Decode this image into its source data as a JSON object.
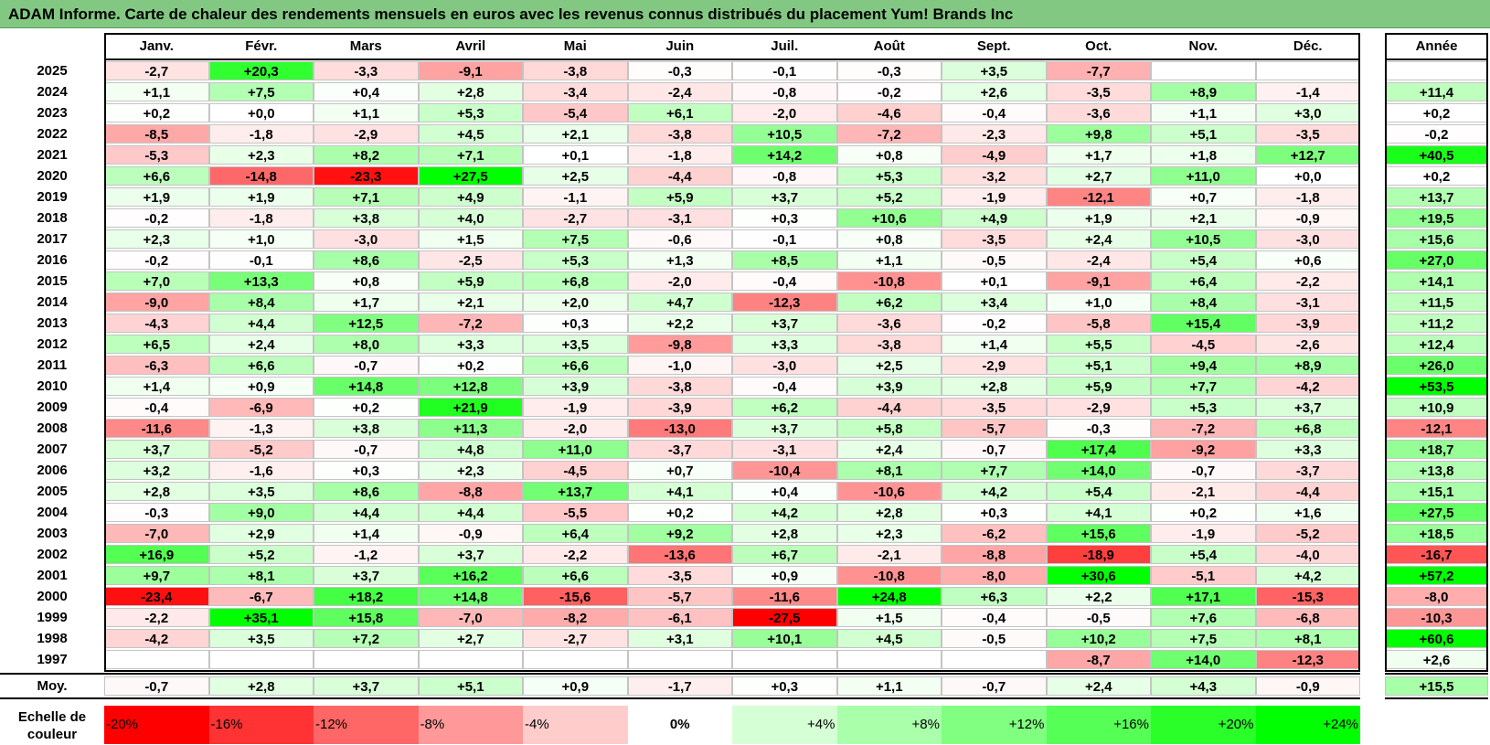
{
  "title": "ADAM Informe. Carte de chaleur des rendements mensuels en euros avec les revenus connus distribués du placement Yum! Brands Inc",
  "chart_data": {
    "type": "heatmap",
    "months": [
      "Janv.",
      "Févr.",
      "Mars",
      "Avril",
      "Mai",
      "Juin",
      "Juil.",
      "Août",
      "Sept.",
      "Oct.",
      "Nov.",
      "Déc."
    ],
    "year_header": "Année",
    "rows": [
      {
        "year": "2025",
        "m": [
          "-2,7",
          "+20,3",
          "-3,3",
          "-9,1",
          "-3,8",
          "-0,3",
          "-0,1",
          "-0,3",
          "+3,5",
          "-7,7",
          "",
          ""
        ],
        "y": ""
      },
      {
        "year": "2024",
        "m": [
          "+1,1",
          "+7,5",
          "+0,4",
          "+2,8",
          "-3,4",
          "-2,4",
          "-0,8",
          "-0,2",
          "+2,6",
          "-3,5",
          "+8,9",
          "-1,4"
        ],
        "y": "+11,4"
      },
      {
        "year": "2023",
        "m": [
          "+0,2",
          "+0,0",
          "+1,1",
          "+5,3",
          "-5,4",
          "+6,1",
          "-2,0",
          "-4,6",
          "-0,4",
          "-3,6",
          "+1,1",
          "+3,0"
        ],
        "y": "+0,2"
      },
      {
        "year": "2022",
        "m": [
          "-8,5",
          "-1,8",
          "-2,9",
          "+4,5",
          "+2,1",
          "-3,8",
          "+10,5",
          "-7,2",
          "-2,3",
          "+9,8",
          "+5,1",
          "-3,5"
        ],
        "y": "-0,2"
      },
      {
        "year": "2021",
        "m": [
          "-5,3",
          "+2,3",
          "+8,2",
          "+7,1",
          "+0,1",
          "-1,8",
          "+14,2",
          "+0,8",
          "-4,9",
          "+1,7",
          "+1,8",
          "+12,7"
        ],
        "y": "+40,5"
      },
      {
        "year": "2020",
        "m": [
          "+6,6",
          "-14,8",
          "-23,3",
          "+27,5",
          "+2,5",
          "-4,4",
          "-0,8",
          "+5,3",
          "-3,2",
          "+2,7",
          "+11,0",
          "+0,0"
        ],
        "y": "+0,2"
      },
      {
        "year": "2019",
        "m": [
          "+1,9",
          "+1,9",
          "+7,1",
          "+4,9",
          "-1,1",
          "+5,9",
          "+3,7",
          "+5,2",
          "-1,9",
          "-12,1",
          "+0,7",
          "-1,8"
        ],
        "y": "+13,7"
      },
      {
        "year": "2018",
        "m": [
          "-0,2",
          "-1,8",
          "+3,8",
          "+4,0",
          "-2,7",
          "-3,1",
          "+0,3",
          "+10,6",
          "+4,9",
          "+1,9",
          "+2,1",
          "-0,9"
        ],
        "y": "+19,5"
      },
      {
        "year": "2017",
        "m": [
          "+2,3",
          "+1,0",
          "-3,0",
          "+1,5",
          "+7,5",
          "-0,6",
          "-0,1",
          "+0,8",
          "-3,5",
          "+2,4",
          "+10,5",
          "-3,0"
        ],
        "y": "+15,6"
      },
      {
        "year": "2016",
        "m": [
          "-0,2",
          "-0,1",
          "+8,6",
          "-2,5",
          "+5,3",
          "+1,3",
          "+8,5",
          "+1,1",
          "-0,5",
          "-2,4",
          "+5,4",
          "+0,6"
        ],
        "y": "+27,0"
      },
      {
        "year": "2015",
        "m": [
          "+7,0",
          "+13,3",
          "+0,8",
          "+5,9",
          "+6,8",
          "-2,0",
          "-0,4",
          "-10,8",
          "+0,1",
          "-9,1",
          "+6,4",
          "-2,2"
        ],
        "y": "+14,1"
      },
      {
        "year": "2014",
        "m": [
          "-9,0",
          "+8,4",
          "+1,7",
          "+2,1",
          "+2,0",
          "+4,7",
          "-12,3",
          "+6,2",
          "+3,4",
          "+1,0",
          "+8,4",
          "-3,1"
        ],
        "y": "+11,5"
      },
      {
        "year": "2013",
        "m": [
          "-4,3",
          "+4,4",
          "+12,5",
          "-7,2",
          "+0,3",
          "+2,2",
          "+3,7",
          "-3,6",
          "-0,2",
          "-5,8",
          "+15,4",
          "-3,9"
        ],
        "y": "+11,2"
      },
      {
        "year": "2012",
        "m": [
          "+6,5",
          "+2,4",
          "+8,0",
          "+3,3",
          "+3,5",
          "-9,8",
          "+3,3",
          "-3,8",
          "+1,4",
          "+5,5",
          "-4,5",
          "-2,6"
        ],
        "y": "+12,4"
      },
      {
        "year": "2011",
        "m": [
          "-6,3",
          "+6,6",
          "-0,7",
          "+0,2",
          "+6,6",
          "-1,0",
          "-3,0",
          "+2,5",
          "-2,9",
          "+5,1",
          "+9,4",
          "+8,9"
        ],
        "y": "+26,0"
      },
      {
        "year": "2010",
        "m": [
          "+1,4",
          "+0,9",
          "+14,8",
          "+12,8",
          "+3,9",
          "-3,8",
          "-0,4",
          "+3,9",
          "+2,8",
          "+5,9",
          "+7,7",
          "-4,2"
        ],
        "y": "+53,5"
      },
      {
        "year": "2009",
        "m": [
          "-0,4",
          "-6,9",
          "+0,2",
          "+21,9",
          "-1,9",
          "-3,9",
          "+6,2",
          "-4,4",
          "-3,5",
          "-2,9",
          "+5,3",
          "+3,7"
        ],
        "y": "+10,9"
      },
      {
        "year": "2008",
        "m": [
          "-11,6",
          "-1,3",
          "+3,8",
          "+11,3",
          "-2,0",
          "-13,0",
          "+3,7",
          "+5,8",
          "-5,7",
          "-0,3",
          "-7,2",
          "+6,8"
        ],
        "y": "-12,1"
      },
      {
        "year": "2007",
        "m": [
          "+3,7",
          "-5,2",
          "-0,7",
          "+4,8",
          "+11,0",
          "-3,7",
          "-3,1",
          "+2,4",
          "-0,7",
          "+17,4",
          "-9,2",
          "+3,3"
        ],
        "y": "+18,7"
      },
      {
        "year": "2006",
        "m": [
          "+3,2",
          "-1,6",
          "+0,3",
          "+2,3",
          "-4,5",
          "+0,7",
          "-10,4",
          "+8,1",
          "+7,7",
          "+14,0",
          "-0,7",
          "-3,7"
        ],
        "y": "+13,8"
      },
      {
        "year": "2005",
        "m": [
          "+2,8",
          "+3,5",
          "+8,6",
          "-8,8",
          "+13,7",
          "+4,1",
          "+0,4",
          "-10,6",
          "+4,2",
          "+5,4",
          "-2,1",
          "-4,4"
        ],
        "y": "+15,1"
      },
      {
        "year": "2004",
        "m": [
          "-0,3",
          "+9,0",
          "+4,4",
          "+4,4",
          "-5,5",
          "+0,2",
          "+4,2",
          "+2,8",
          "+0,3",
          "+4,1",
          "+0,2",
          "+1,6"
        ],
        "y": "+27,5"
      },
      {
        "year": "2003",
        "m": [
          "-7,0",
          "+2,9",
          "+1,4",
          "-0,9",
          "+6,4",
          "+9,2",
          "+2,8",
          "+2,3",
          "-6,2",
          "+15,6",
          "-1,9",
          "-5,2"
        ],
        "y": "+18,5"
      },
      {
        "year": "2002",
        "m": [
          "+16,9",
          "+5,2",
          "-1,2",
          "+3,7",
          "-2,2",
          "-13,6",
          "+6,7",
          "-2,1",
          "-8,8",
          "-18,9",
          "+5,4",
          "-4,0"
        ],
        "y": "-16,7"
      },
      {
        "year": "2001",
        "m": [
          "+9,7",
          "+8,1",
          "+3,7",
          "+16,2",
          "+6,6",
          "-3,5",
          "+0,9",
          "-10,8",
          "-8,0",
          "+30,6",
          "-5,1",
          "+4,2"
        ],
        "y": "+57,2"
      },
      {
        "year": "2000",
        "m": [
          "-23,4",
          "-6,7",
          "+18,2",
          "+14,8",
          "-15,6",
          "-5,7",
          "-11,6",
          "+24,8",
          "+6,3",
          "+2,2",
          "+17,1",
          "-15,3"
        ],
        "y": "-8,0"
      },
      {
        "year": "1999",
        "m": [
          "-2,2",
          "+35,1",
          "+15,8",
          "-7,0",
          "-8,2",
          "-6,1",
          "-27,5",
          "+1,5",
          "-0,4",
          "-0,5",
          "+7,6",
          "-6,8"
        ],
        "y": "-10,3"
      },
      {
        "year": "1998",
        "m": [
          "-4,2",
          "+3,5",
          "+7,2",
          "+2,7",
          "-2,7",
          "+3,1",
          "+10,1",
          "+4,5",
          "-0,5",
          "+10,2",
          "+7,5",
          "+8,1"
        ],
        "y": "+60,6"
      },
      {
        "year": "1997",
        "m": [
          "",
          "",
          "",
          "",
          "",
          "",
          "",
          "",
          "",
          "-8,7",
          "+14,0",
          "-12,3"
        ],
        "y": "+2,6"
      }
    ],
    "average": {
      "label": "Moy.",
      "m": [
        "-0,7",
        "+2,8",
        "+3,7",
        "+5,1",
        "+0,9",
        "-1,7",
        "+0,3",
        "+1,1",
        "-0,7",
        "+2,4",
        "+4,3",
        "-0,9"
      ],
      "y": "+15,5"
    },
    "scale": {
      "label": "Echelle de couleur",
      "steps": [
        "-20%",
        "-16%",
        "-12%",
        "-8%",
        "-4%",
        "0%",
        "+4%",
        "+8%",
        "+12%",
        "+16%",
        "+20%",
        "+24%"
      ]
    }
  }
}
